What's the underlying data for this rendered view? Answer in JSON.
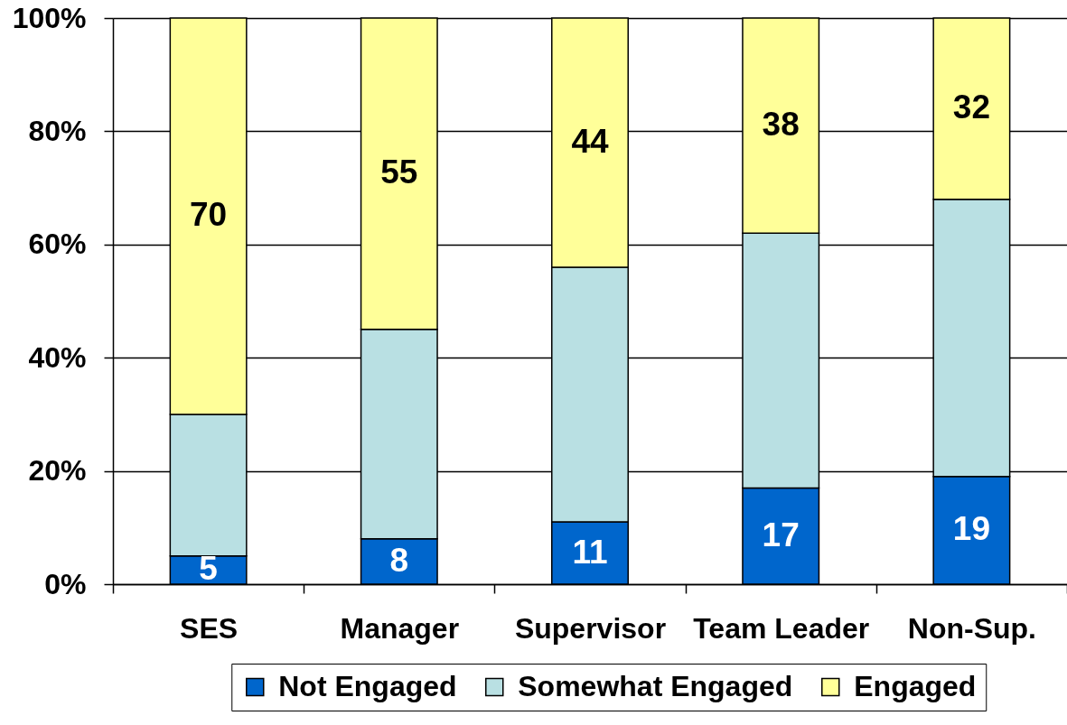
{
  "chart_data": {
    "type": "bar",
    "stacked": true,
    "categories": [
      "SES",
      "Manager",
      "Supervisor",
      "Team Leader",
      "Non-Sup."
    ],
    "series": [
      {
        "name": "Not Engaged",
        "color": "#0066cc",
        "values": [
          5,
          8,
          11,
          17,
          19
        ],
        "value_labels": [
          "5",
          "8",
          "11",
          "17",
          "19"
        ]
      },
      {
        "name": "Somewhat Engaged",
        "color": "#b9e0e3",
        "values": [
          25,
          37,
          45,
          45,
          49
        ]
      },
      {
        "name": "Engaged",
        "color": "#ffff99",
        "values": [
          70,
          55,
          44,
          38,
          32
        ],
        "value_labels": [
          "70",
          "55",
          "44",
          "38",
          "32"
        ]
      }
    ],
    "ylim": [
      0,
      100
    ],
    "yticks": [
      {
        "value": 0,
        "label": "0%"
      },
      {
        "value": 20,
        "label": "20%"
      },
      {
        "value": 40,
        "label": "40%"
      },
      {
        "value": 60,
        "label": "60%"
      },
      {
        "value": 80,
        "label": "80%"
      },
      {
        "value": 100,
        "label": "100%"
      }
    ],
    "grid": "y",
    "legend": "bottom"
  }
}
